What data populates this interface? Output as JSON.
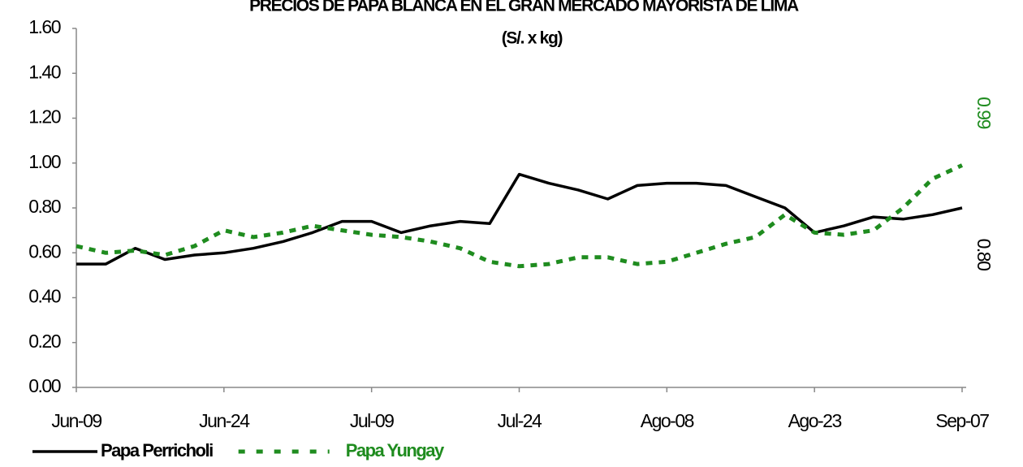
{
  "chart_data": {
    "type": "line",
    "title": "PRECIOS DE PAPA BLANCA EN EL GRAN MERCADO MAYORISTA DE LIMA",
    "subtitle": "(S/. x kg)",
    "categories": [
      "Jun-09",
      null,
      null,
      null,
      null,
      "Jun-24",
      null,
      null,
      null,
      null,
      "Jul-09",
      null,
      null,
      null,
      null,
      "Jul-24",
      null,
      null,
      null,
      null,
      "Ago-08",
      null,
      null,
      null,
      null,
      "Ago-23",
      null,
      null,
      null,
      null,
      "Sep-07"
    ],
    "series": [
      {
        "name": "Papa Perricholi",
        "color": "#000000",
        "dash": false,
        "values": [
          0.55,
          0.55,
          0.62,
          0.57,
          0.59,
          0.6,
          0.62,
          0.65,
          0.69,
          0.74,
          0.74,
          0.69,
          0.72,
          0.74,
          0.73,
          0.95,
          0.91,
          0.88,
          0.84,
          0.9,
          0.91,
          0.91,
          0.9,
          0.85,
          0.8,
          0.69,
          0.72,
          0.76,
          0.75,
          0.77,
          0.8
        ],
        "value_labels": [
          null,
          null,
          null,
          null,
          null,
          null,
          null,
          null,
          null,
          null,
          null,
          null,
          null,
          null,
          null,
          null,
          null,
          null,
          null,
          null,
          null,
          null,
          null,
          null,
          null,
          null,
          null,
          null,
          null,
          null,
          "0.80"
        ]
      },
      {
        "name": "Papa Yungay",
        "color": "#1f8c1f",
        "dash": true,
        "values": [
          0.63,
          0.6,
          0.61,
          0.59,
          0.63,
          0.7,
          0.67,
          0.69,
          0.72,
          0.7,
          0.68,
          0.67,
          0.65,
          0.62,
          0.56,
          0.54,
          0.55,
          0.58,
          0.58,
          0.55,
          0.56,
          0.6,
          0.64,
          0.67,
          0.77,
          0.69,
          0.68,
          0.7,
          0.8,
          0.93,
          0.99
        ],
        "value_labels": [
          null,
          null,
          null,
          null,
          null,
          null,
          null,
          null,
          null,
          null,
          null,
          null,
          null,
          null,
          null,
          null,
          null,
          null,
          null,
          null,
          null,
          null,
          null,
          null,
          null,
          null,
          null,
          null,
          null,
          null,
          "0.99"
        ]
      }
    ],
    "ylim": [
      0,
      1.6
    ],
    "yticks": [
      {
        "value": 0,
        "label": "0.00"
      },
      {
        "value": 0.2,
        "label": "0.20"
      },
      {
        "value": 0.4,
        "label": "0.40"
      },
      {
        "value": 0.6,
        "label": "0.60"
      },
      {
        "value": 0.8,
        "label": "0.80"
      },
      {
        "value": 1.0,
        "label": "1.00"
      },
      {
        "value": 1.2,
        "label": "1.20"
      },
      {
        "value": 1.4,
        "label": "1.40"
      },
      {
        "value": 1.6,
        "label": "1.60"
      }
    ],
    "grid": false,
    "legend": "bottom-left"
  }
}
